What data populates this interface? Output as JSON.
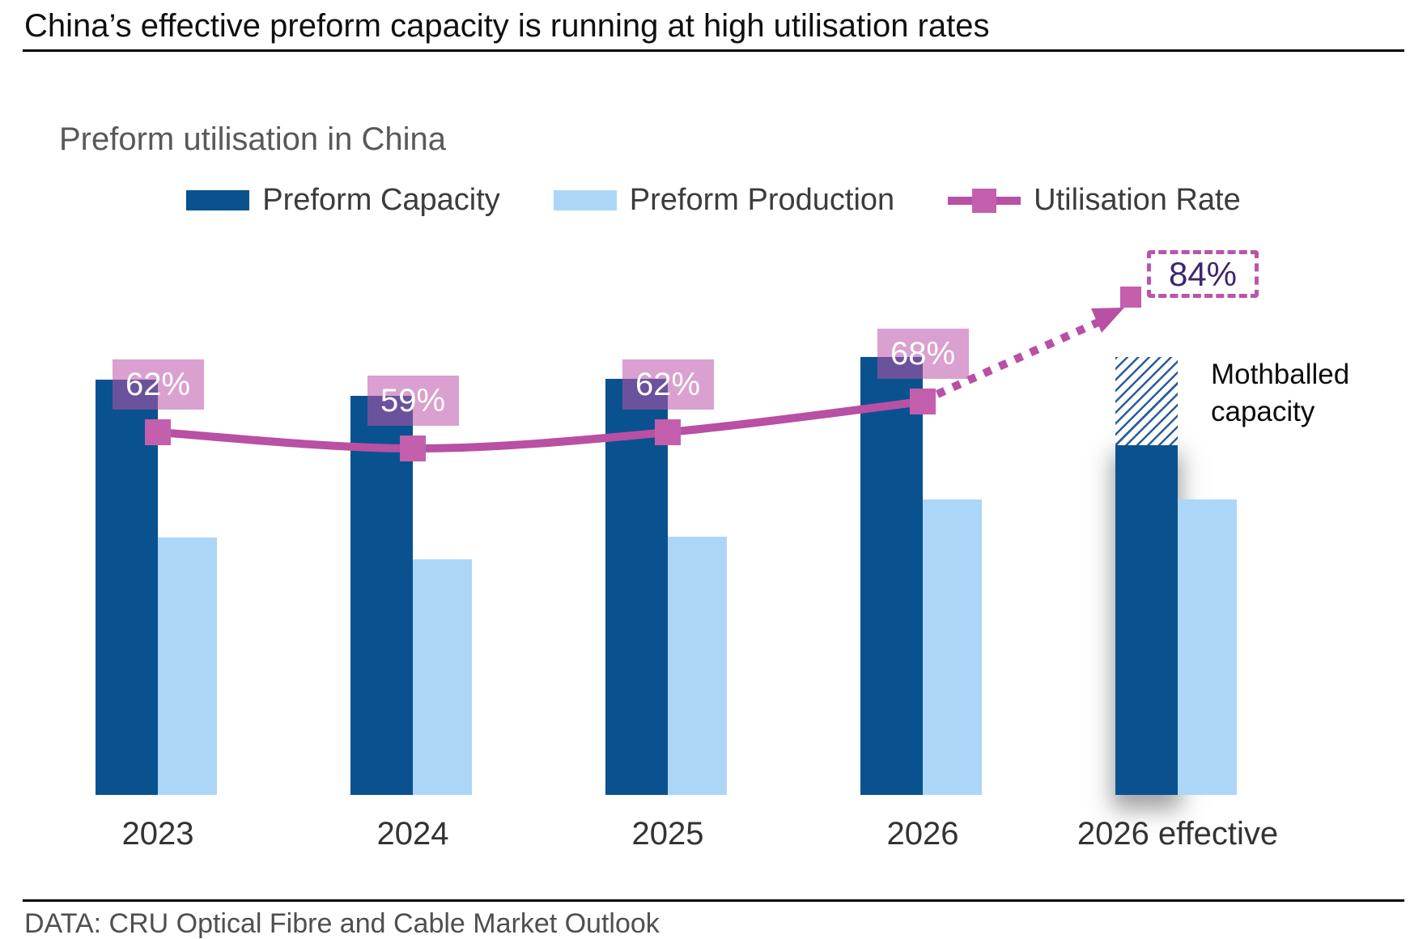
{
  "slide": {
    "title": "China’s effective preform capacity is running at high utilisation rates",
    "chart_title": "Preform utilisation in China",
    "source": "DATA: CRU Optical Fibre and Cable Market Outlook"
  },
  "legend": {
    "items": [
      {
        "label": "Preform Capacity",
        "swatch": "dark-blue-bar"
      },
      {
        "label": "Preform Production",
        "swatch": "light-blue-bar"
      },
      {
        "label": "Utilisation Rate",
        "swatch": "magenta-line-with-square-marker"
      }
    ]
  },
  "annotations": {
    "mothballed_label": "Mothballed capacity",
    "effective_utilisation_label": "84%"
  },
  "colors": {
    "capacity_bar": "#09528f",
    "production_bar": "#acd6f7",
    "utilisation_line": "#b850a4",
    "utilisation_marker": "#c45fae",
    "rate_label_fill": "rgba(188,82,168,0.55)",
    "effective_label_text": "#3e266e",
    "effective_label_border": "#bb54ab",
    "hatch_stripe": "#2a5d94"
  },
  "chart_data": {
    "type": "bar+line",
    "title": "Preform utilisation in China",
    "unit_note": "index values, 2023 Preform Capacity = 100 (no y-axis shown in chart)",
    "categories": [
      "2023",
      "2024",
      "2025",
      "2026",
      "2026 effective"
    ],
    "series": [
      {
        "name": "Preform Capacity",
        "type": "bar",
        "color": "#09528f",
        "values": [
          100,
          96.1,
          100.2,
          105.5,
          84.2
        ]
      },
      {
        "name": "Preform Production",
        "type": "bar",
        "color": "#acd6f7",
        "values": [
          62,
          56.7,
          62.2,
          71.2,
          71.2
        ]
      },
      {
        "name": "Utilisation Rate",
        "type": "line",
        "color": "#b850a4",
        "values": [
          62,
          59,
          62,
          68,
          84
        ],
        "labels": [
          "62%",
          "59%",
          "62%",
          "68%",
          "84%"
        ]
      }
    ],
    "mothballed_capacity": {
      "category": "2026 effective",
      "value": 21.3,
      "style": "hatched",
      "label": "Mothballed capacity"
    },
    "legend_position": "top",
    "y_axis": "hidden",
    "grid": "off",
    "notes": "Last utilisation point (84%) is projected with a dotted arrow and shown in a dashed outlined label"
  }
}
